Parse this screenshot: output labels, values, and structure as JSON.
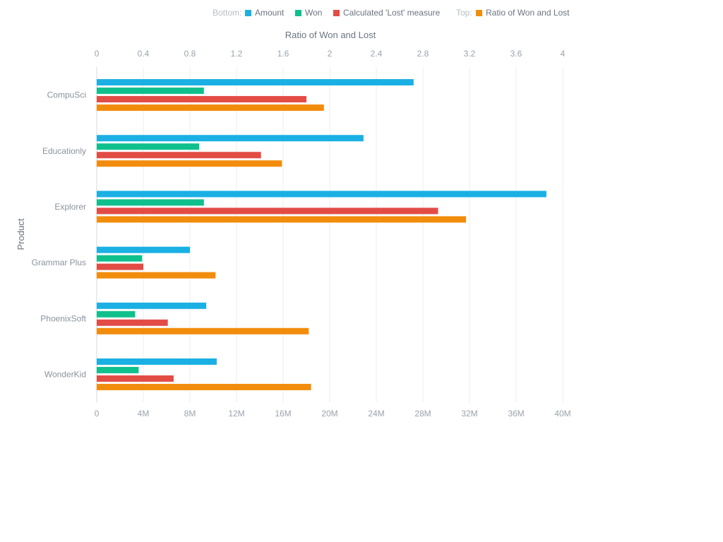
{
  "legend": {
    "bottom_label": "Bottom:",
    "top_label": "Top:"
  },
  "chart_data": {
    "type": "bar",
    "orientation": "horizontal",
    "categories": [
      "CompuSci",
      "Educationly",
      "Explorer",
      "Grammar Plus",
      "PhoenixSoft",
      "WonderKid"
    ],
    "y_axis_title": "Product",
    "bottom_axis": {
      "ticks": [
        "0",
        "4M",
        "8M",
        "12M",
        "16M",
        "20M",
        "24M",
        "28M",
        "32M",
        "36M",
        "40M"
      ],
      "range": [
        0,
        40000000
      ]
    },
    "top_axis": {
      "title": "Ratio of Won and Lost",
      "ticks": [
        "0",
        "0.4",
        "0.8",
        "1.2",
        "1.6",
        "2",
        "2.4",
        "2.8",
        "3.2",
        "3.6",
        "4"
      ],
      "range": [
        0,
        4
      ]
    },
    "series": [
      {
        "name": "Amount",
        "axis": "bottom",
        "color": "#1ab0e4",
        "values": [
          27200000,
          22900000,
          38600000,
          8000000,
          9400000,
          10300000
        ]
      },
      {
        "name": "Won",
        "axis": "bottom",
        "color": "#0fc08d",
        "values": [
          9200000,
          8800000,
          9200000,
          3900000,
          3300000,
          3600000
        ]
      },
      {
        "name": "Calculated 'Lost' measure",
        "axis": "bottom",
        "color": "#e24c45",
        "values": [
          18000000,
          14100000,
          29300000,
          4000000,
          6100000,
          6600000
        ]
      },
      {
        "name": "Ratio of Won and Lost",
        "axis": "top",
        "color": "#f28c0c",
        "values": [
          1.95,
          1.59,
          3.17,
          1.02,
          1.82,
          1.84
        ]
      }
    ],
    "grid": true
  }
}
